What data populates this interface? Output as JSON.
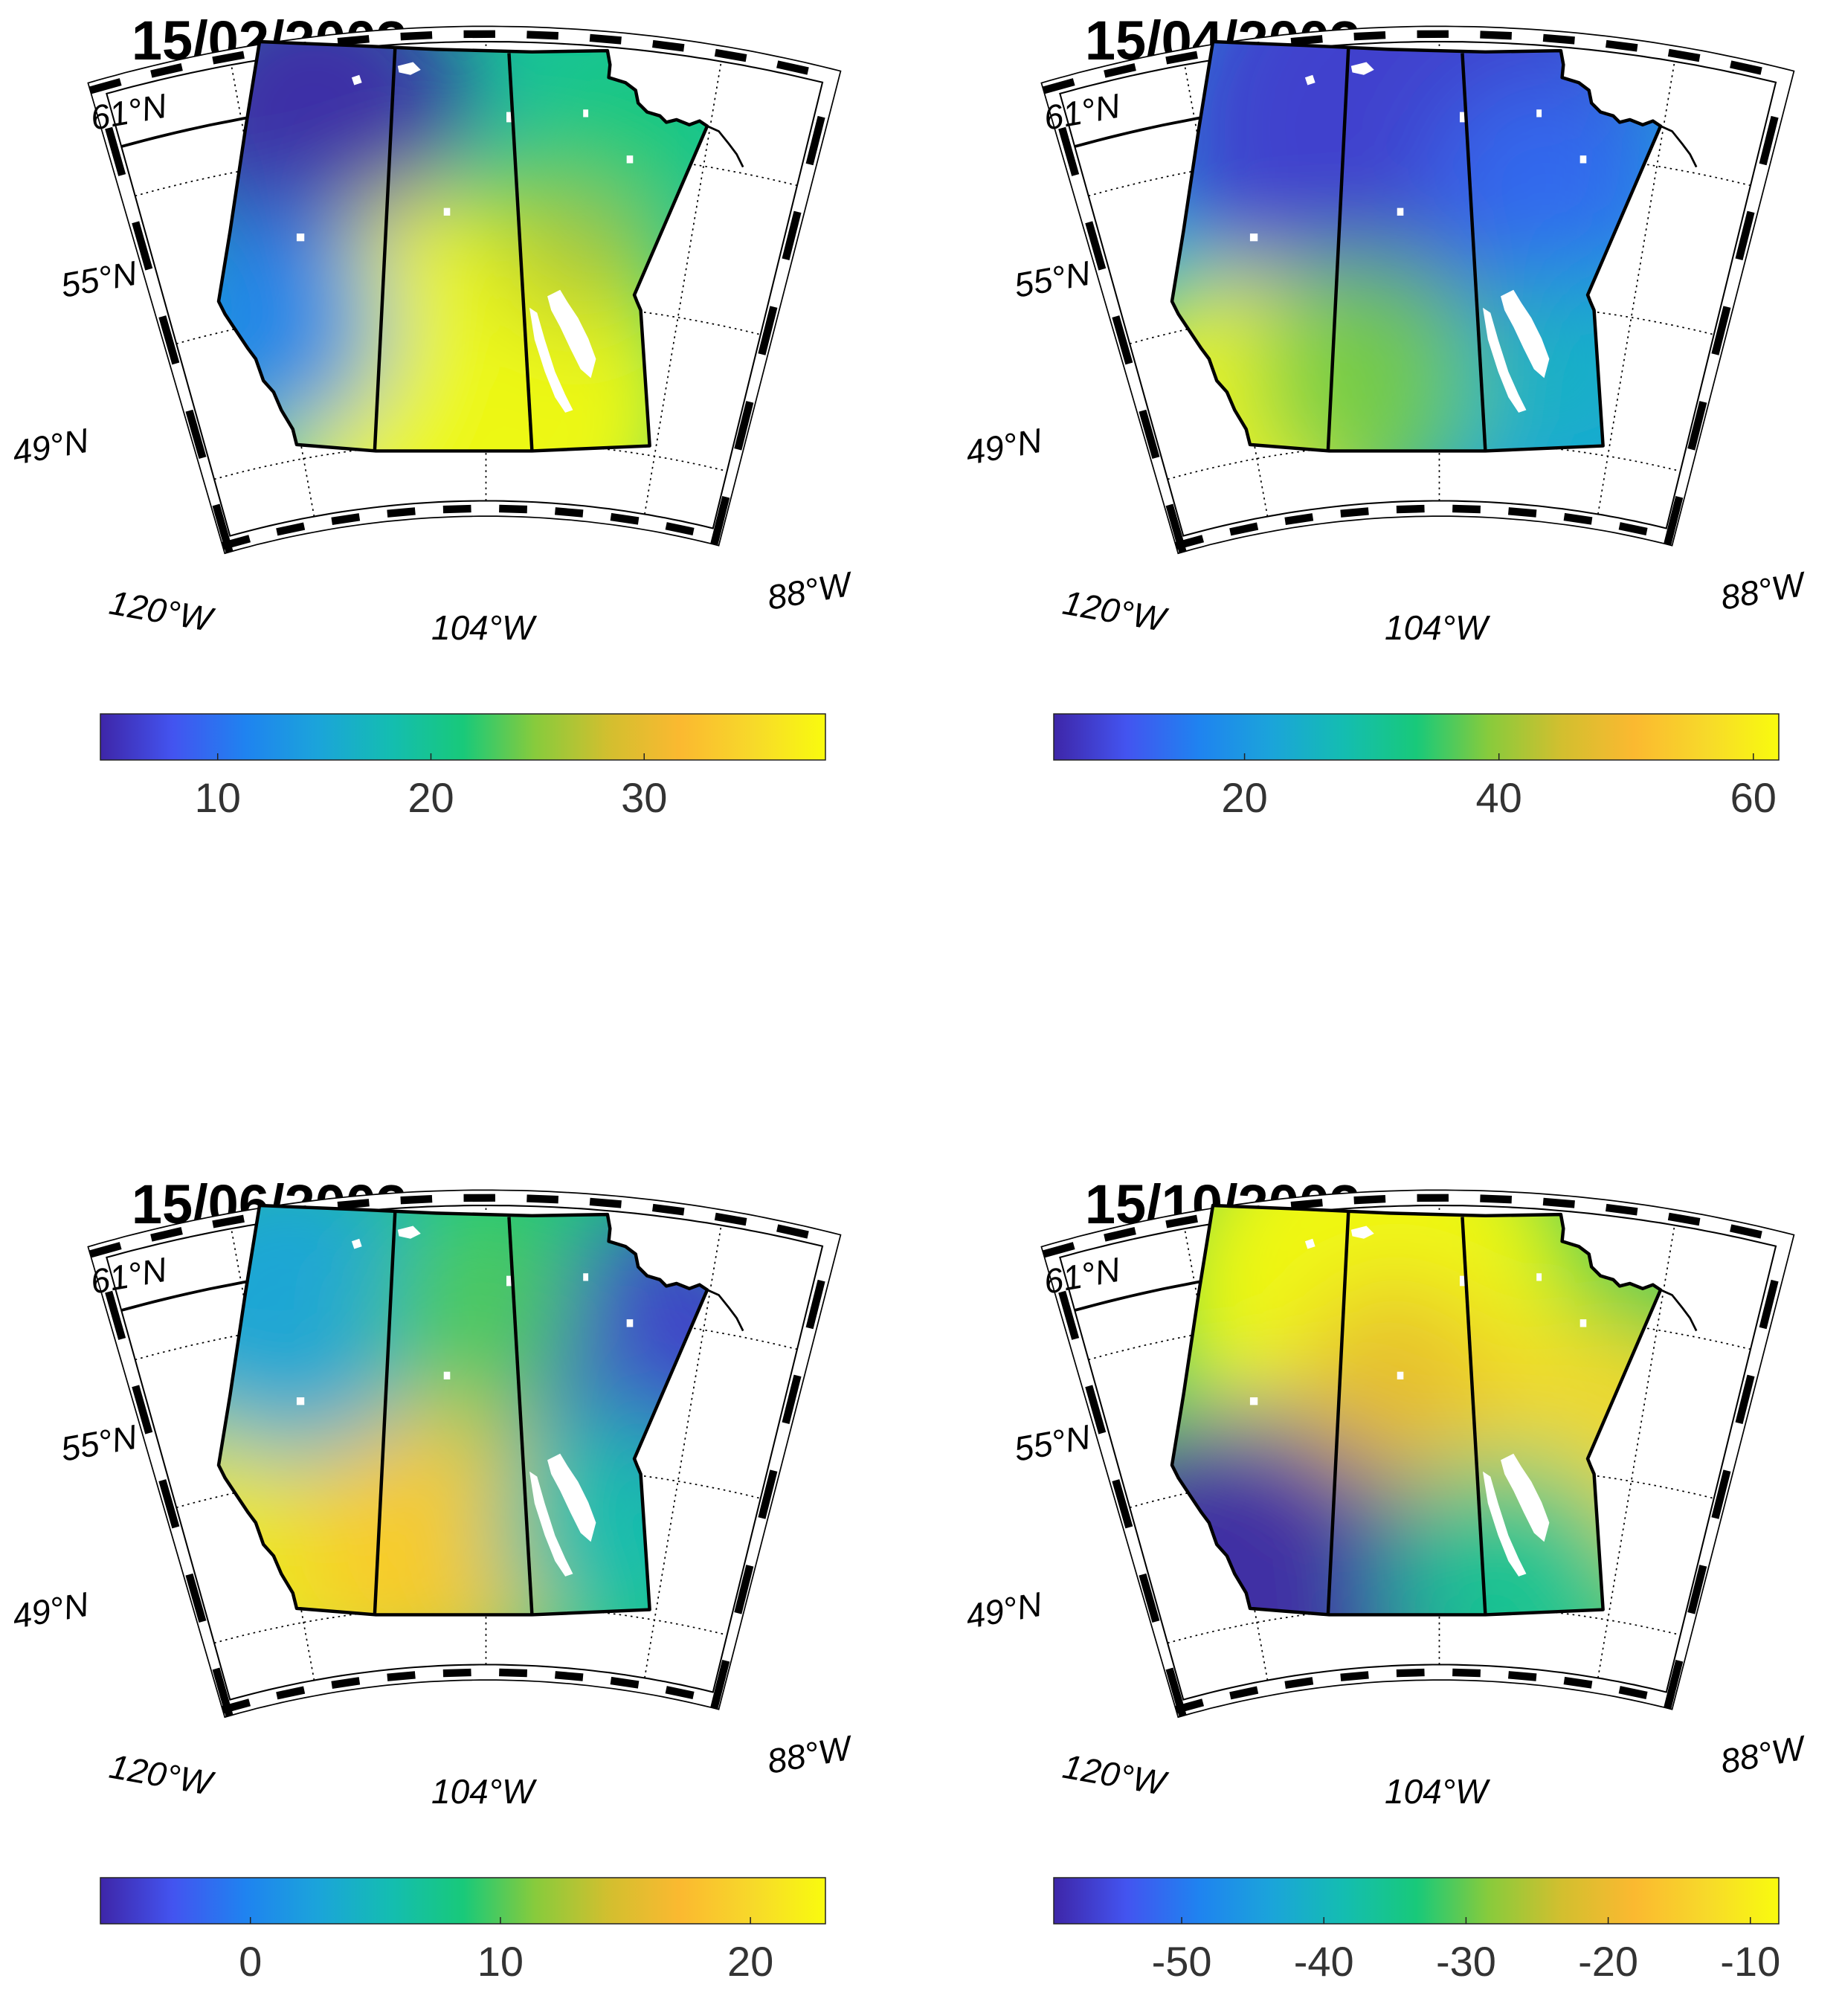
{
  "figure": {
    "panels": [
      {
        "title": "15/02/2003",
        "lat_labels": [
          "61°N",
          "55°N",
          "49°N"
        ],
        "lon_labels": [
          "120°W",
          "104°W",
          "88°W"
        ],
        "colorbar": {
          "min": 4.5,
          "max": 38.5,
          "ticks": [
            10,
            20,
            30
          ],
          "tick_labels": [
            "10",
            "20",
            "30"
          ]
        },
        "field": {
          "background_level": 0.45,
          "blobs": [
            {
              "name": "north-west low",
              "level": 0.0
            },
            {
              "name": "south-central high",
              "level": 1.0
            },
            {
              "name": "west-central low",
              "level": 0.2
            },
            {
              "name": "east-central high",
              "level": 0.65
            },
            {
              "name": "north-east",
              "level": 0.5
            }
          ]
        }
      },
      {
        "title": "15/04/2003",
        "lat_labels": [
          "61°N",
          "55°N",
          "49°N"
        ],
        "lon_labels": [
          "120°W",
          "104°W",
          "88°W"
        ],
        "colorbar": {
          "min": 5,
          "max": 62,
          "ticks": [
            20,
            40,
            60
          ],
          "tick_labels": [
            "20",
            "40",
            "60"
          ]
        },
        "field": {
          "background_level": 0.3,
          "blobs": [
            {
              "name": "north low",
              "level": 0.05
            },
            {
              "name": "south-west high",
              "level": 1.0
            },
            {
              "name": "south-central",
              "level": 0.58
            },
            {
              "name": "east low",
              "level": 0.15
            },
            {
              "name": "south-east",
              "level": 0.35
            }
          ]
        }
      },
      {
        "title": "15/06/2003",
        "lat_labels": [
          "61°N",
          "55°N",
          "49°N"
        ],
        "lon_labels": [
          "120°W",
          "104°W",
          "88°W"
        ],
        "colorbar": {
          "min": -6,
          "max": 23,
          "ticks": [
            0,
            10,
            20
          ],
          "tick_labels": [
            "0",
            "10",
            "20"
          ]
        },
        "field": {
          "background_level": 0.5,
          "blobs": [
            {
              "name": "south-west high",
              "level": 0.95
            },
            {
              "name": "south-central high",
              "level": 0.85
            },
            {
              "name": "north-east low",
              "level": 0.05
            },
            {
              "name": "north-west",
              "level": 0.3
            },
            {
              "name": "north-central",
              "level": 0.55
            },
            {
              "name": "south-east",
              "level": 0.4
            }
          ]
        }
      },
      {
        "title": "15/10/2003",
        "lat_labels": [
          "61°N",
          "55°N",
          "49°N"
        ],
        "lon_labels": [
          "120°W",
          "104°W",
          "88°W"
        ],
        "colorbar": {
          "min": -59,
          "max": -8,
          "ticks": [
            -50,
            -40,
            -30,
            -20,
            -10
          ],
          "tick_labels": [
            "-50",
            "-40",
            "-30",
            "-20",
            "-10"
          ]
        },
        "field": {
          "background_level": 0.55,
          "blobs": [
            {
              "name": "north high",
              "level": 1.0
            },
            {
              "name": "south-west low",
              "level": 0.0
            },
            {
              "name": "central",
              "level": 0.75
            },
            {
              "name": "east high",
              "level": 0.9
            },
            {
              "name": "south-east",
              "level": 0.45
            }
          ]
        }
      }
    ]
  }
}
